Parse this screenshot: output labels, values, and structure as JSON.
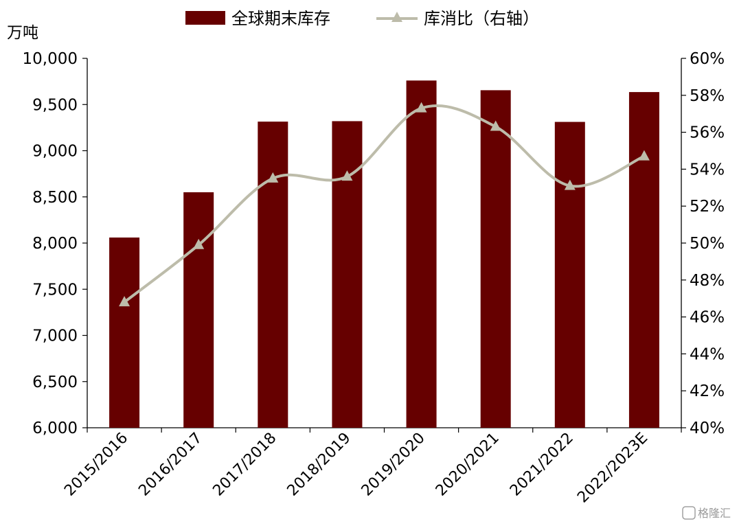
{
  "chart_data": {
    "type": "bar",
    "categories": [
      "2015/2016",
      "2016/2017",
      "2017/2018",
      "2018/2019",
      "2019/2020",
      "2020/2021",
      "2021/2022",
      "2022/2023E"
    ],
    "series": [
      {
        "name": "全球期末库存",
        "type": "bar",
        "axis": "left",
        "color": "#660000",
        "values": [
          8060,
          8550,
          9315,
          9320,
          9760,
          9655,
          9312,
          9635
        ]
      },
      {
        "name": "库消比（右轴）",
        "type": "line",
        "axis": "right",
        "color": "#bdbcaa",
        "marker": "triangle",
        "values": [
          46.8,
          49.9,
          53.5,
          53.6,
          57.3,
          56.3,
          53.1,
          54.7
        ]
      }
    ],
    "y_left": {
      "unit_label": "万吨",
      "ylim": [
        6000,
        10000
      ],
      "ticks": [
        "6,000",
        "6,500",
        "7,000",
        "7,500",
        "8,000",
        "8,500",
        "9,000",
        "9,500",
        "10,000"
      ]
    },
    "y_right": {
      "ylim": [
        40,
        60
      ],
      "ticks": [
        "40%",
        "42%",
        "44%",
        "46%",
        "48%",
        "50%",
        "52%",
        "54%",
        "56%",
        "58%",
        "60%"
      ]
    },
    "grid": false,
    "legend_position": "top-center"
  },
  "watermark": {
    "text": "格隆汇"
  }
}
